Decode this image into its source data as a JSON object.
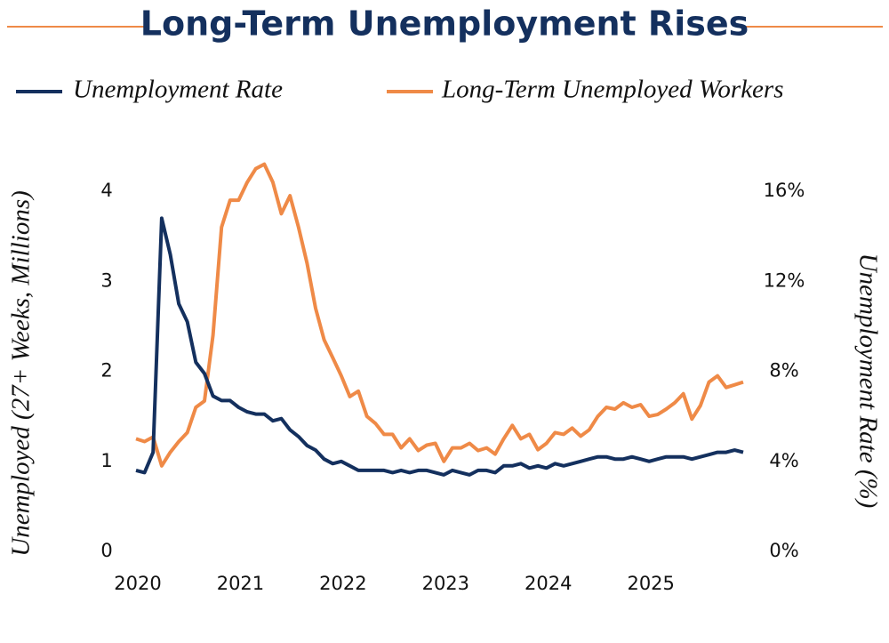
{
  "chart_data": {
    "type": "line",
    "title": "Long-Term Unemployment Rises",
    "y_label": "Unemployed (27+ Weeks, Millions)",
    "y2_label": "Unemployment Rate (%)",
    "categories": [
      "2020",
      null,
      null,
      null,
      null,
      null,
      null,
      null,
      null,
      null,
      null,
      null,
      "2021",
      null,
      null,
      null,
      null,
      null,
      null,
      null,
      null,
      null,
      null,
      null,
      "2022",
      null,
      null,
      null,
      null,
      null,
      null,
      null,
      null,
      null,
      null,
      null,
      "2023",
      null,
      null,
      null,
      null,
      null,
      null,
      null,
      null,
      null,
      null,
      null,
      "2024",
      null,
      null,
      null,
      null,
      null,
      null,
      null,
      null,
      null,
      null,
      null,
      "2025",
      null,
      null,
      null,
      null,
      null,
      null,
      null,
      null,
      null,
      null,
      null
    ],
    "series": [
      {
        "name": "Unemployment Rate",
        "color": "#14305e",
        "axis": "y2",
        "values": [
          3.6,
          3.5,
          4.4,
          14.8,
          13.2,
          11.0,
          10.2,
          8.4,
          7.9,
          6.9,
          6.7,
          6.7,
          6.4,
          6.2,
          6.1,
          6.1,
          5.8,
          5.9,
          5.4,
          5.1,
          4.7,
          4.5,
          4.1,
          3.9,
          4.0,
          3.8,
          3.6,
          3.6,
          3.6,
          3.6,
          3.5,
          3.6,
          3.5,
          3.6,
          3.6,
          3.5,
          3.4,
          3.6,
          3.5,
          3.4,
          3.6,
          3.6,
          3.5,
          3.8,
          3.8,
          3.9,
          3.7,
          3.8,
          3.7,
          3.9,
          3.8,
          3.9,
          4.0,
          4.1,
          4.2,
          4.2,
          4.1,
          4.1,
          4.2,
          4.1,
          4.0,
          4.1,
          4.2,
          4.2,
          4.2,
          4.1,
          4.2,
          4.3,
          4.4,
          4.4,
          4.5,
          4.4
        ]
      },
      {
        "name": "Long-Term Unemployed Workers",
        "color": "#ef8a47",
        "values": [
          1.25,
          1.22,
          1.27,
          0.95,
          1.1,
          1.22,
          1.32,
          1.6,
          1.67,
          2.4,
          3.6,
          3.9,
          3.9,
          4.1,
          4.25,
          4.3,
          4.1,
          3.75,
          3.95,
          3.6,
          3.2,
          2.7,
          2.35,
          2.15,
          1.95,
          1.72,
          1.78,
          1.5,
          1.42,
          1.3,
          1.3,
          1.15,
          1.25,
          1.12,
          1.18,
          1.2,
          1.0,
          1.15,
          1.15,
          1.2,
          1.12,
          1.15,
          1.08,
          1.25,
          1.4,
          1.25,
          1.3,
          1.13,
          1.2,
          1.32,
          1.3,
          1.37,
          1.28,
          1.35,
          1.5,
          1.6,
          1.58,
          1.65,
          1.6,
          1.63,
          1.5,
          1.52,
          1.58,
          1.65,
          1.75,
          1.47,
          1.62,
          1.88,
          1.95,
          1.82,
          1.85,
          1.88
        ]
      }
    ],
    "ylim": [
      0,
      4
    ],
    "yticks": [
      0,
      1,
      2,
      3,
      4
    ],
    "y2lim": [
      0,
      16
    ],
    "y2ticks": [
      {
        "value": 0,
        "label": "0%"
      },
      {
        "value": 4,
        "label": "4%"
      },
      {
        "value": 8,
        "label": "8%"
      },
      {
        "value": 12,
        "label": "12%"
      },
      {
        "value": 16,
        "label": "16%"
      }
    ],
    "grid": false,
    "legend": "top"
  }
}
